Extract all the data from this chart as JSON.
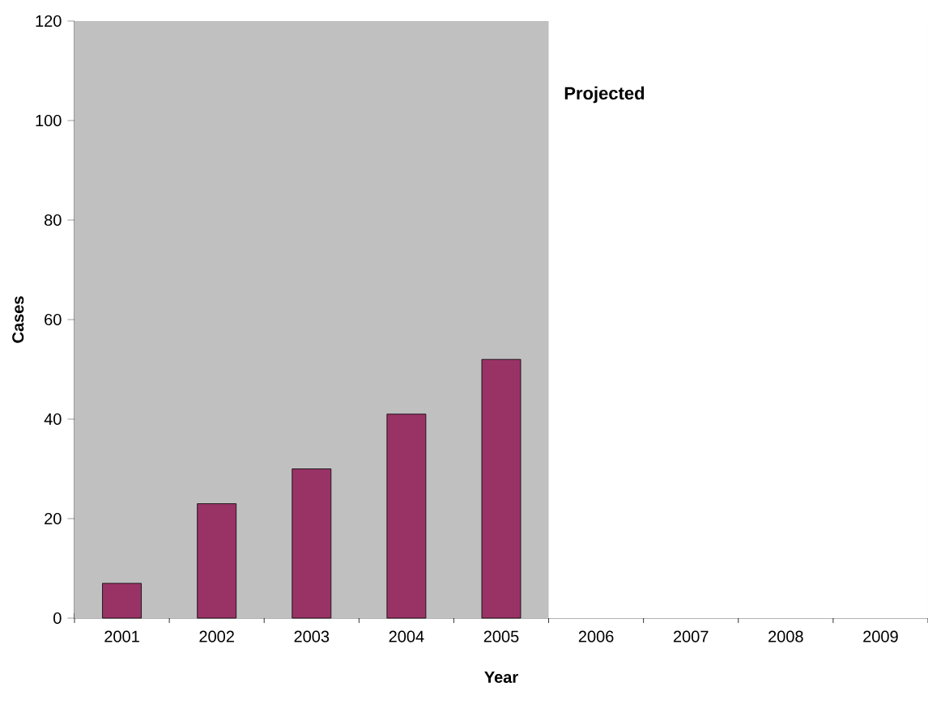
{
  "chart_data": {
    "type": "bar",
    "xlabel": "Year",
    "ylabel": "Cases",
    "categories": [
      "2001",
      "2002",
      "2003",
      "2004",
      "2005",
      "2006",
      "2007",
      "2008",
      "2009"
    ],
    "values": [
      7,
      23,
      30,
      41,
      52,
      null,
      null,
      null,
      null
    ],
    "color": "#993366",
    "ylim": [
      0,
      120
    ],
    "yticks": [
      0,
      20,
      40,
      60,
      80,
      100,
      120
    ],
    "grid": false,
    "bands": [
      {
        "axis": "x",
        "from": "2006",
        "to": "2009",
        "label": "Projected",
        "color": "#ffffff"
      }
    ]
  }
}
